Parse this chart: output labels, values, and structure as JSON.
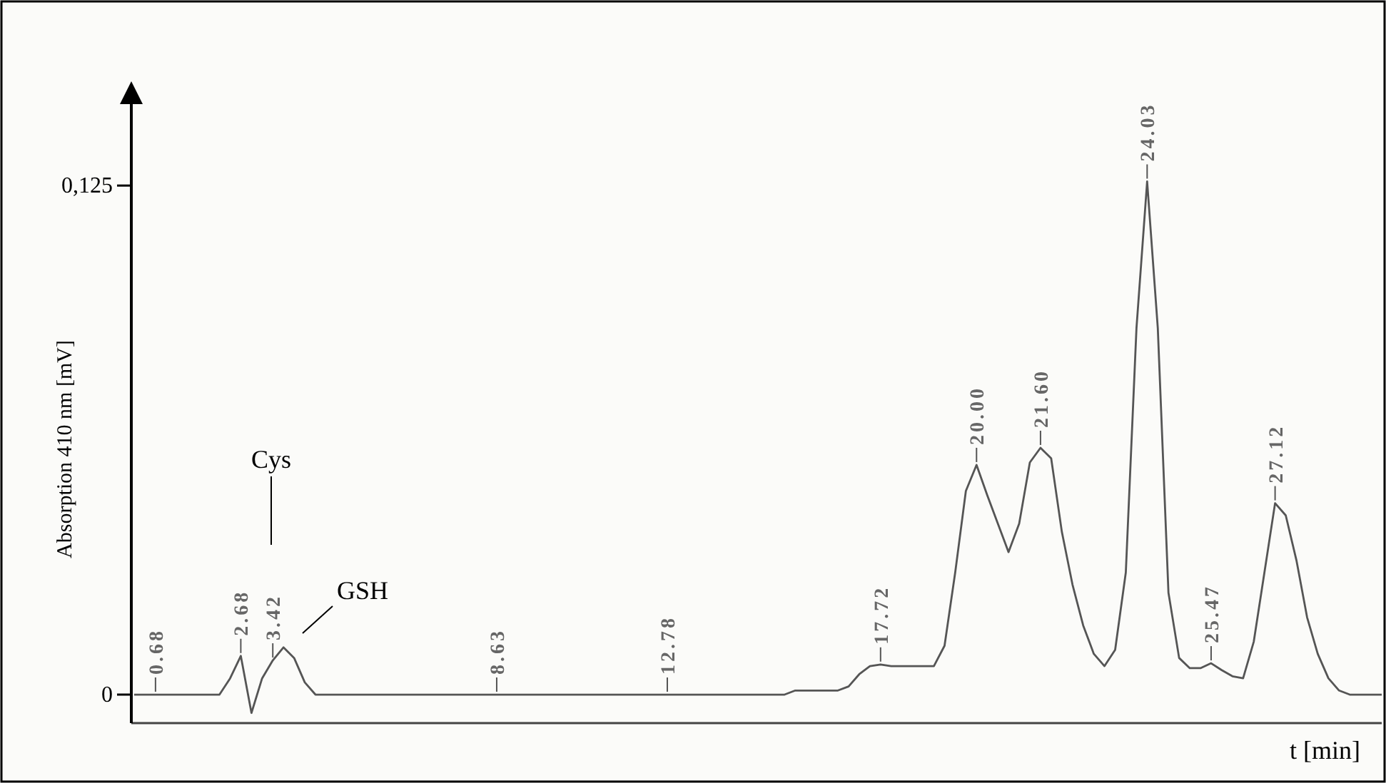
{
  "chart_data": {
    "type": "line",
    "xlabel": "t [min]",
    "ylabel": "Absorption 410 nm [mV]",
    "ylim": [
      -0.007,
      0.145
    ],
    "yticks": [
      0,
      {
        "value": 0.125,
        "label": "0,125"
      }
    ],
    "marker": "none",
    "line_style": "solid",
    "categories": [
      null,
      null,
      "0.68",
      null,
      null,
      null,
      null,
      null,
      null,
      null,
      "2.68",
      null,
      null,
      "3.42",
      null,
      null,
      null,
      null,
      null,
      null,
      null,
      null,
      null,
      null,
      null,
      null,
      null,
      null,
      null,
      null,
      null,
      null,
      null,
      null,
      "8.63",
      null,
      null,
      null,
      null,
      null,
      null,
      null,
      null,
      null,
      null,
      null,
      null,
      null,
      null,
      null,
      "12.78",
      null,
      null,
      null,
      null,
      null,
      null,
      null,
      null,
      null,
      null,
      null,
      null,
      null,
      null,
      null,
      null,
      null,
      null,
      null,
      "17.72",
      null,
      null,
      null,
      null,
      null,
      null,
      null,
      null,
      "20.00",
      null,
      null,
      null,
      null,
      null,
      "21.60",
      null,
      null,
      null,
      null,
      null,
      null,
      null,
      null,
      null,
      "24.03",
      null,
      null,
      null,
      null,
      null,
      "25.47",
      null,
      null,
      null,
      null,
      null,
      "27.12",
      null,
      null,
      null,
      null,
      null,
      null,
      null,
      null,
      null,
      null
    ],
    "series": [
      {
        "color": "#555555",
        "values": [
          0,
          0,
          0,
          0,
          0,
          0,
          0,
          0,
          0,
          0.004,
          0.0095,
          -0.0045,
          0.004,
          0.0084,
          0.0116,
          0.009,
          0.003,
          0,
          0,
          0,
          0,
          0,
          0,
          0,
          0,
          0,
          0,
          0,
          0,
          0,
          0,
          0,
          0,
          0,
          0,
          0,
          0,
          0,
          0,
          0,
          0,
          0,
          0,
          0,
          0,
          0,
          0,
          0,
          0,
          0,
          0,
          0,
          0,
          0,
          0,
          0,
          0,
          0,
          0,
          0,
          0,
          0,
          0.001,
          0.001,
          0.001,
          0.001,
          0.001,
          0.002,
          0.005,
          0.007,
          0.0074,
          0.007,
          0.007,
          0.007,
          0.007,
          0.007,
          0.012,
          0.03,
          0.05,
          0.0564,
          0.049,
          0.042,
          0.035,
          0.042,
          0.057,
          0.0606,
          0.058,
          0.04,
          0.027,
          0.017,
          0.01,
          0.007,
          0.011,
          0.03,
          0.09,
          0.126,
          0.09,
          0.025,
          0.009,
          0.0065,
          0.0065,
          0.0077,
          0.006,
          0.0045,
          0.004,
          0.013,
          0.03,
          0.047,
          0.044,
          0.033,
          0.019,
          0.01,
          0.004,
          0.001,
          0,
          0,
          0,
          0
        ]
      }
    ],
    "annotations": [
      "Cys",
      "GSH"
    ]
  }
}
